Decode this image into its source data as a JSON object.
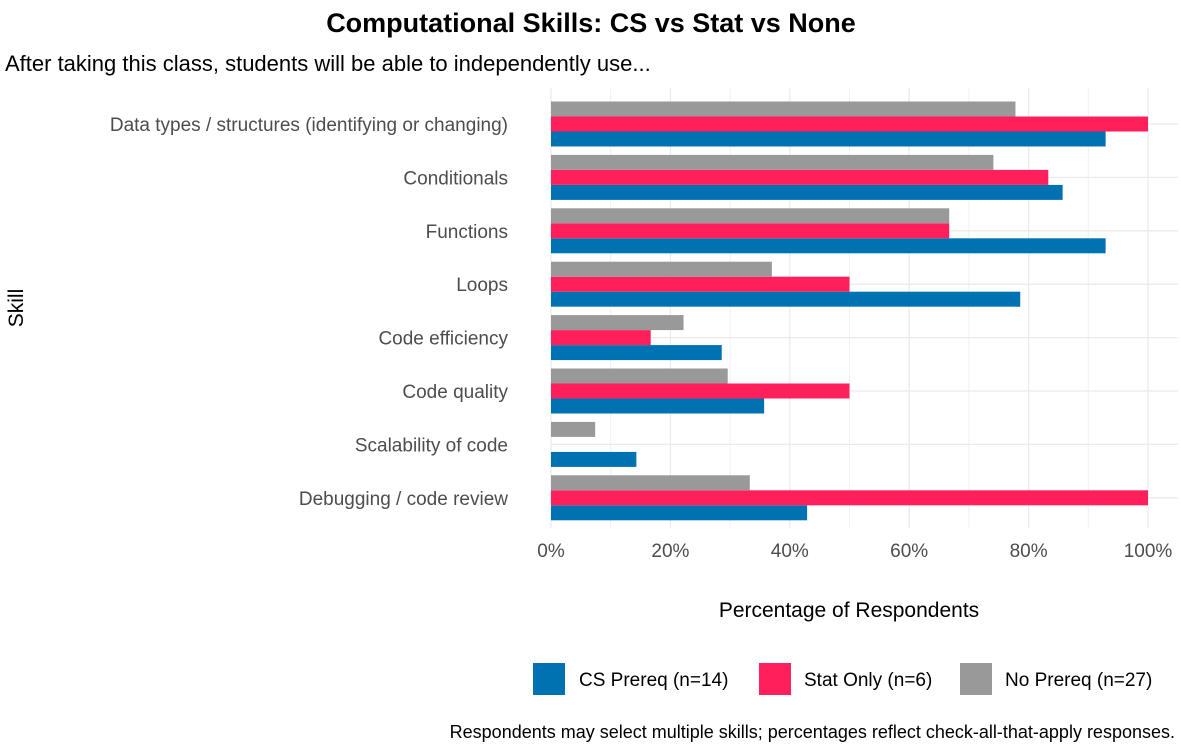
{
  "chart_data": {
    "type": "bar",
    "orientation": "horizontal",
    "title": "Computational Skills: CS vs Stat vs None",
    "subtitle": "After taking this class, students will be able to independently use...",
    "xlabel": "Percentage of Respondents",
    "ylabel": "Skill",
    "xlim": [
      0,
      100
    ],
    "x_ticks": [
      "0%",
      "20%",
      "40%",
      "60%",
      "80%",
      "100%"
    ],
    "x_tick_values": [
      0,
      20,
      40,
      60,
      80,
      100
    ],
    "categories": [
      "Data types / structures (identifying or changing)",
      "Conditionals",
      "Functions",
      "Loops",
      "Code efficiency",
      "Code quality",
      "Scalability of code",
      "Debugging / code review"
    ],
    "series": [
      {
        "name": "CS Prereq (n=14)",
        "color": "#0072B2",
        "values": [
          92.9,
          85.7,
          92.9,
          78.6,
          28.6,
          35.7,
          14.3,
          42.9
        ]
      },
      {
        "name": "Stat Only (n=6)",
        "color": "#FF1F5B",
        "values": [
          100,
          83.3,
          66.7,
          50.0,
          16.7,
          50.0,
          0,
          100
        ]
      },
      {
        "name": "No Prereq (n=27)",
        "color": "#999999",
        "values": [
          77.8,
          74.1,
          66.7,
          37.0,
          22.2,
          29.6,
          7.4,
          33.3
        ]
      }
    ],
    "grid": true,
    "legend_position": "bottom",
    "caption": "Respondents may select multiple skills; percentages reflect check-all-that-apply responses."
  }
}
